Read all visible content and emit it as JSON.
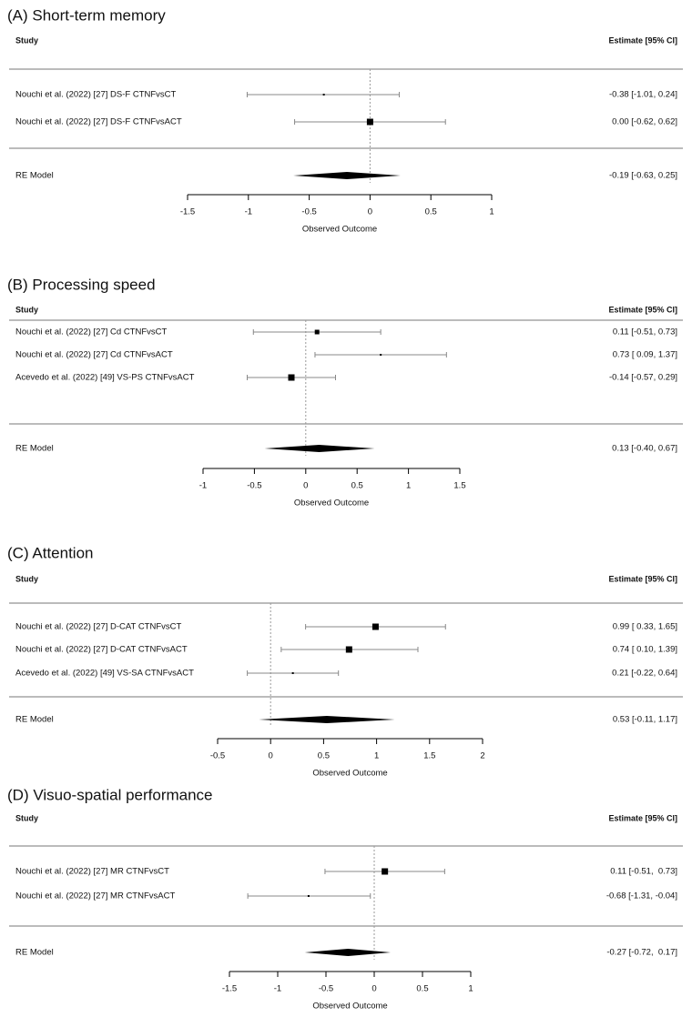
{
  "chart_data": [
    {
      "type": "forest",
      "title": "(A) Short-term memory",
      "study_header": "Study",
      "estimate_header": "Estimate [95% CI]",
      "studies": [
        "Nouchi et al. (2022) [27] DS-F CTNFvsCT",
        "Nouchi et al. (2022) [27] DS-F CTNFvsACT"
      ],
      "values": [
        -0.38,
        0.0
      ],
      "ci_lower": [
        -1.01,
        -0.62
      ],
      "ci_upper": [
        0.24,
        0.62
      ],
      "value_labels": [
        "-0.38 [-1.01, 0.24]",
        "0.00 [-0.62, 0.62]"
      ],
      "summary": {
        "name": "RE Model",
        "value": -0.19,
        "ci_lower": -0.63,
        "ci_upper": 0.25,
        "value_label": "-0.19 [-0.63, 0.25]"
      },
      "xlabel": "Observed Outcome",
      "xlim": [
        -1.5,
        1
      ],
      "xticks": [
        -1.5,
        -1,
        -0.5,
        0,
        0.5,
        1
      ]
    },
    {
      "type": "forest",
      "title": "(B) Processing speed",
      "study_header": "Study",
      "estimate_header": "Estimate [95% CI]",
      "studies": [
        "Nouchi et al. (2022) [27] Cd CTNFvsCT",
        "Nouchi et al. (2022) [27] Cd CTNFvsACT",
        "Acevedo et al. (2022) [49] VS-PS CTNFvsACT"
      ],
      "values": [
        0.11,
        0.73,
        -0.14
      ],
      "ci_lower": [
        -0.51,
        0.09,
        -0.57
      ],
      "ci_upper": [
        0.73,
        1.37,
        0.29
      ],
      "value_labels": [
        "0.11 [-0.51, 0.73]",
        "0.73 [ 0.09, 1.37]",
        "-0.14 [-0.57, 0.29]"
      ],
      "summary": {
        "name": "RE Model",
        "value": 0.13,
        "ci_lower": -0.4,
        "ci_upper": 0.67,
        "value_label": "0.13 [-0.40, 0.67]"
      },
      "xlabel": "Observed Outcome",
      "xlim": [
        -1,
        1.5
      ],
      "xticks": [
        -1,
        -0.5,
        0,
        0.5,
        1,
        1.5
      ]
    },
    {
      "type": "forest",
      "title": "(C) Attention",
      "study_header": "Study",
      "estimate_header": "Estimate [95% CI]",
      "studies": [
        "Nouchi et al. (2022) [27] D-CAT CTNFvsCT",
        "Nouchi et al. (2022) [27] D-CAT CTNFvsACT",
        "Acevedo et al. (2022) [49] VS-SA CTNFvsACT"
      ],
      "values": [
        0.99,
        0.74,
        0.21
      ],
      "ci_lower": [
        0.33,
        0.1,
        -0.22
      ],
      "ci_upper": [
        1.65,
        1.39,
        0.64
      ],
      "value_labels": [
        "0.99 [ 0.33, 1.65]",
        "0.74 [ 0.10, 1.39]",
        "0.21 [-0.22, 0.64]"
      ],
      "summary": {
        "name": "RE Model",
        "value": 0.53,
        "ci_lower": -0.11,
        "ci_upper": 1.17,
        "value_label": "0.53 [-0.11, 1.17]"
      },
      "xlabel": "Observed Outcome",
      "xlim": [
        -0.5,
        2
      ],
      "xticks": [
        -0.5,
        0,
        0.5,
        1,
        1.5,
        2
      ]
    },
    {
      "type": "forest",
      "title": "(D) Visuo-spatial performance",
      "study_header": "Study",
      "estimate_header": "Estimate [95% CI]",
      "studies": [
        "Nouchi et al. (2022) [27] MR CTNFvsCT",
        "Nouchi et al. (2022) [27] MR CTNFvsACT"
      ],
      "values": [
        0.11,
        -0.68
      ],
      "ci_lower": [
        -0.51,
        -1.31
      ],
      "ci_upper": [
        0.73,
        -0.04
      ],
      "value_labels": [
        "0.11 [-0.51,  0.73]",
        "-0.68 [-1.31, -0.04]"
      ],
      "summary": {
        "name": "RE Model",
        "value": -0.27,
        "ci_lower": -0.72,
        "ci_upper": 0.17,
        "value_label": "-0.27 [-0.72,  0.17]"
      },
      "xlabel": "Observed Outcome",
      "xlim": [
        -1.5,
        1
      ],
      "xticks": [
        -1.5,
        -1,
        -0.5,
        0,
        0.5,
        1
      ]
    }
  ]
}
